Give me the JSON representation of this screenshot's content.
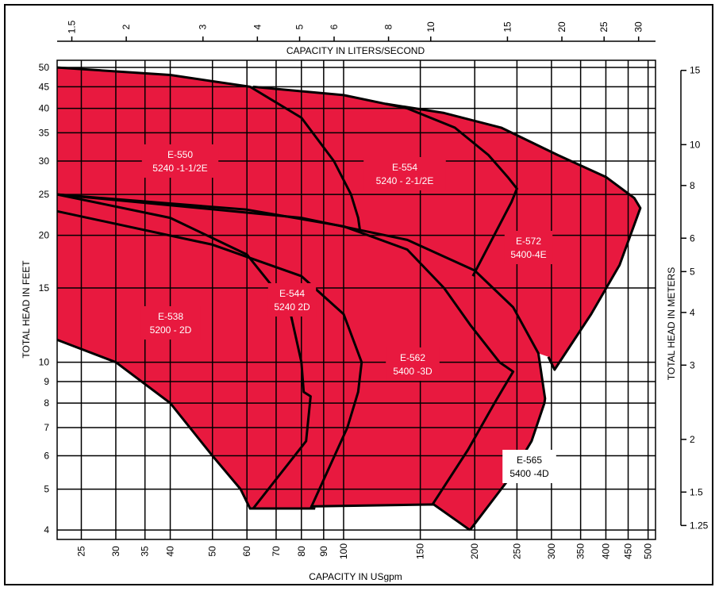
{
  "chart_data": {
    "type": "area",
    "title": "",
    "xlabel": "CAPACITY IN USgpm",
    "x2label": "CAPACITY IN LITERS/SECOND",
    "ylabel": "TOTAL HEAD IN FEET",
    "y2label": "TOTAL HEAD IN METERS",
    "x_scale": "log",
    "y_scale": "log",
    "grid": true,
    "fill_color": "#e8193f",
    "xlim": [
      22,
      520
    ],
    "ylim": [
      3.8,
      52
    ],
    "x_ticks": [
      25,
      30,
      35,
      40,
      50,
      60,
      70,
      80,
      90,
      100,
      150,
      200,
      250,
      300,
      350,
      400,
      450,
      500
    ],
    "x2_ticks": [
      "1.5",
      "2",
      "3",
      "4",
      "5",
      "6",
      "8",
      "10",
      "15",
      "20",
      "25",
      "30"
    ],
    "y_ticks": [
      4,
      5,
      6,
      7,
      8,
      9,
      10,
      15,
      20,
      25,
      30,
      35,
      40,
      45,
      50
    ],
    "y2_ticks": [
      "1.25",
      "1.5",
      "2",
      "3",
      "4",
      "5",
      "6",
      "8",
      "10",
      "15"
    ],
    "curves": [
      {
        "points": [
          [
            22,
            50
          ],
          [
            40,
            48
          ],
          [
            61,
            45
          ],
          [
            80,
            38
          ],
          [
            95,
            30
          ],
          [
            104,
            25
          ],
          [
            108,
            22
          ],
          [
            109,
            20.6
          ]
        ]
      },
      {
        "points": [
          [
            62,
            45
          ],
          [
            100,
            43
          ],
          [
            140,
            40
          ],
          [
            180,
            36
          ],
          [
            215,
            31
          ],
          [
            238,
            27.5
          ],
          [
            250,
            25.8
          ],
          [
            243,
            24
          ],
          [
            198,
            16
          ]
        ]
      },
      {
        "points": [
          [
            125,
            41
          ],
          [
            170,
            39
          ],
          [
            230,
            36
          ],
          [
            310,
            31
          ],
          [
            400,
            27.5
          ],
          [
            465,
            24.5
          ],
          [
            480,
            23.2
          ],
          [
            430,
            17
          ],
          [
            370,
            13
          ],
          [
            305,
            9.6
          ],
          [
            295,
            10.3
          ]
        ]
      },
      {
        "points": [
          [
            22,
            25
          ],
          [
            40,
            22
          ],
          [
            60,
            18
          ],
          [
            75,
            13.5
          ],
          [
            80,
            10
          ],
          [
            81,
            8.5
          ],
          [
            84,
            8.3
          ],
          [
            82,
            6.5
          ],
          [
            62,
            4.5
          ]
        ]
      },
      {
        "points": [
          [
            22,
            22.8
          ],
          [
            50,
            19
          ],
          [
            80,
            16
          ],
          [
            100,
            13
          ],
          [
            110,
            10
          ],
          [
            108,
            8.5
          ],
          [
            102,
            7
          ],
          [
            91,
            5.4
          ],
          [
            84,
            4.5
          ]
        ]
      },
      {
        "points": [
          [
            22,
            25
          ],
          [
            60,
            23
          ],
          [
            100,
            21
          ],
          [
            140,
            18.5
          ],
          [
            170,
            15
          ],
          [
            196,
            12.2
          ],
          [
            228,
            10
          ],
          [
            245,
            9.5
          ],
          [
            222,
            8
          ],
          [
            193,
            6.2
          ],
          [
            160,
            4.6
          ]
        ]
      },
      {
        "points": [
          [
            22,
            25
          ],
          [
            80,
            22
          ],
          [
            140,
            19.5
          ],
          [
            200,
            16.5
          ],
          [
            245,
            13.5
          ],
          [
            280,
            10.5
          ],
          [
            290,
            8.2
          ],
          [
            289,
            8
          ],
          [
            270,
            6.5
          ],
          [
            240,
            5.3
          ],
          [
            195,
            4
          ]
        ]
      }
    ],
    "lower_boundary": [
      [
        22,
        11.3
      ],
      [
        30,
        10
      ],
      [
        40,
        8
      ],
      [
        50,
        6
      ],
      [
        58,
        5
      ],
      [
        61,
        4.5
      ],
      [
        86,
        4.5
      ],
      [
        84,
        4.55
      ],
      [
        161,
        4.6
      ],
      [
        195,
        4
      ]
    ],
    "regions": [
      {
        "model": "E-550",
        "pump": "5240 -1-1/2E"
      },
      {
        "model": "E-554",
        "pump": "5240 - 2-1/2E"
      },
      {
        "model": "E-572",
        "pump": "5400-4E"
      },
      {
        "model": "E-544",
        "pump": "5240 2D"
      },
      {
        "model": "E-538",
        "pump": "5200 - 2D"
      },
      {
        "model": "E-562",
        "pump": "5400 -3D"
      },
      {
        "model": "E-565",
        "pump": "5400 -4D"
      }
    ]
  }
}
